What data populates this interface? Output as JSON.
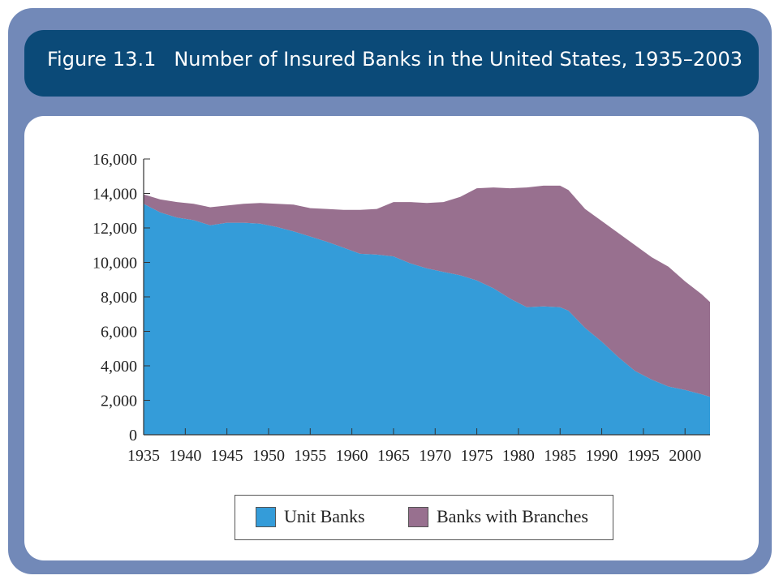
{
  "header": {
    "figure_number": "Figure 13.1",
    "title": "Number of Insured Banks in the United States, 1935–2003"
  },
  "colors": {
    "frame": "#7289b8",
    "title_bar": "#0b4a78",
    "unit_banks": "#349cd9",
    "branch_banks": "#98708f"
  },
  "chart_data": {
    "type": "area",
    "stacked": true,
    "title": "Number of Insured Banks in the United States, 1935–2003",
    "xlabel": "",
    "ylabel": "",
    "xlim": [
      1935,
      2003
    ],
    "ylim": [
      0,
      16000
    ],
    "x_ticks": [
      1935,
      1940,
      1945,
      1950,
      1955,
      1960,
      1965,
      1970,
      1975,
      1980,
      1985,
      1990,
      1995,
      2000
    ],
    "x_tick_labels": [
      "1935",
      "1940",
      "1945",
      "1950",
      "1955",
      "1960",
      "1965",
      "1970",
      "1975",
      "1980",
      "1985",
      "1990",
      "1995",
      "2000"
    ],
    "y_ticks": [
      0,
      2000,
      4000,
      6000,
      8000,
      10000,
      12000,
      14000,
      16000
    ],
    "y_tick_labels": [
      "0",
      "2,000",
      "4,000",
      "6,000",
      "8,000",
      "10,000",
      "12,000",
      "14,000",
      "16,000"
    ],
    "grid": false,
    "legend": "bottom",
    "x": [
      1935,
      1937,
      1939,
      1941,
      1943,
      1945,
      1947,
      1949,
      1951,
      1953,
      1955,
      1957,
      1959,
      1961,
      1963,
      1965,
      1967,
      1969,
      1971,
      1973,
      1975,
      1977,
      1979,
      1981,
      1983,
      1985,
      1986,
      1988,
      1990,
      1992,
      1994,
      1996,
      1998,
      2000,
      2002,
      2003
    ],
    "series": [
      {
        "name": "Unit Banks",
        "color": "#349cd9",
        "values": [
          13400,
          12900,
          12600,
          12450,
          12150,
          12300,
          12300,
          12250,
          12050,
          11800,
          11500,
          11200,
          10850,
          10500,
          10450,
          10350,
          9950,
          9650,
          9450,
          9250,
          8950,
          8500,
          7900,
          7400,
          7450,
          7400,
          7200,
          6200,
          5400,
          4500,
          3700,
          3200,
          2800,
          2600,
          2350,
          2200
        ]
      },
      {
        "name": "Banks with Branches",
        "color": "#98708f",
        "values": [
          550,
          750,
          900,
          950,
          1050,
          1000,
          1100,
          1200,
          1350,
          1550,
          1650,
          1900,
          2200,
          2550,
          2650,
          3150,
          3550,
          3800,
          4050,
          4550,
          5350,
          5850,
          6400,
          6950,
          7000,
          7050,
          7000,
          6900,
          7000,
          7200,
          7300,
          7100,
          6950,
          6300,
          5800,
          5500
        ]
      }
    ]
  }
}
